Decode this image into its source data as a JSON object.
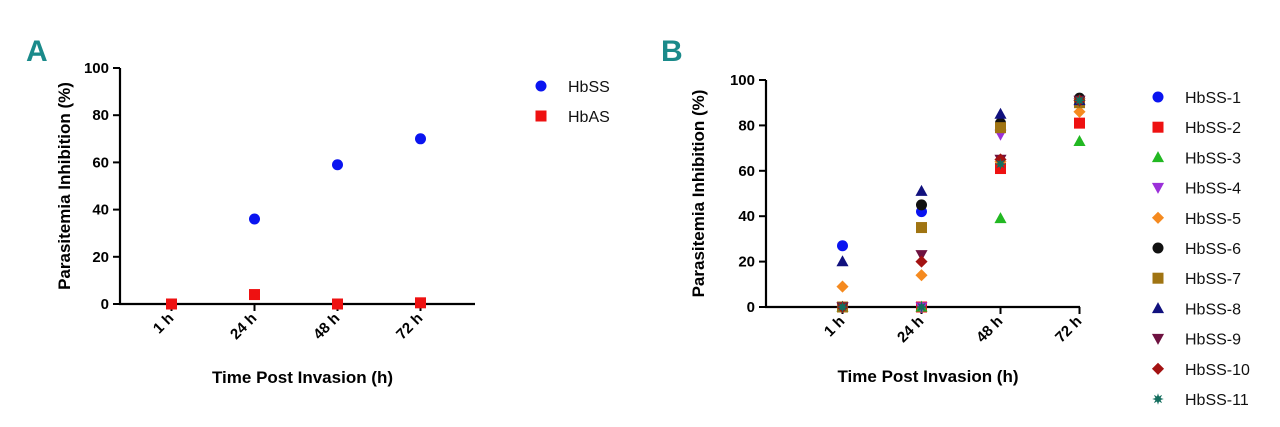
{
  "panel_letter_color": "#1a8a8a",
  "chart_data": [
    {
      "panel": "A",
      "type": "scatter",
      "xlabel": "Time Post Invasion (h)",
      "ylabel": "Parasitemia Inhibition (%)",
      "categories": [
        "1 h",
        "24 h",
        "48 h",
        "72 h"
      ],
      "yticks": [
        "0",
        "20",
        "40",
        "60",
        "80",
        "100"
      ],
      "ylim": [
        0,
        100
      ],
      "grid": false,
      "legend_position": "right",
      "series": [
        {
          "name": "HbSS",
          "color": "#0a14f0",
          "marker": "circle",
          "values": [
            null,
            36,
            59,
            70
          ]
        },
        {
          "name": "HbAS",
          "color": "#ee1111",
          "marker": "square",
          "values": [
            0,
            4,
            0,
            0.5
          ]
        }
      ]
    },
    {
      "panel": "B",
      "type": "scatter",
      "xlabel": "Time Post Invasion (h)",
      "ylabel": "Parasitemia Inhibition (%)",
      "categories": [
        "1 h",
        "24 h",
        "48 h",
        "72 h"
      ],
      "yticks": [
        "0",
        "20",
        "40",
        "60",
        "80",
        "100"
      ],
      "ylim": [
        0,
        100
      ],
      "grid": false,
      "legend_position": "right",
      "series": [
        {
          "name": "HbSS-1",
          "color": "#0a14f0",
          "marker": "circle",
          "values": [
            27,
            42,
            80,
            91
          ]
        },
        {
          "name": "HbSS-2",
          "color": "#ee1111",
          "marker": "square",
          "values": [
            0,
            0,
            61,
            81
          ]
        },
        {
          "name": "HbSS-3",
          "color": "#22b822",
          "marker": "triangle-up",
          "values": [
            0,
            0,
            39,
            73
          ]
        },
        {
          "name": "HbSS-4",
          "color": "#9b30d9",
          "marker": "triangle-down",
          "values": [
            0,
            0,
            76,
            90
          ]
        },
        {
          "name": "HbSS-5",
          "color": "#f58a1f",
          "marker": "diamond",
          "values": [
            9,
            14,
            64,
            86
          ]
        },
        {
          "name": "HbSS-6",
          "color": "#111111",
          "marker": "circle",
          "values": [
            0,
            45,
            81,
            92
          ]
        },
        {
          "name": "HbSS-7",
          "color": "#a07412",
          "marker": "square",
          "values": [
            0,
            35,
            79,
            90
          ]
        },
        {
          "name": "HbSS-8",
          "color": "#11117e",
          "marker": "triangle-up",
          "values": [
            20,
            51,
            85,
            91
          ]
        },
        {
          "name": "HbSS-9",
          "color": "#6e1240",
          "marker": "triangle-down",
          "values": [
            0,
            23,
            65,
            91
          ]
        },
        {
          "name": "HbSS-10",
          "color": "#a31212",
          "marker": "diamond",
          "values": [
            0,
            20,
            65,
            91
          ]
        },
        {
          "name": "HbSS-11",
          "color": "#146e5e",
          "marker": "star",
          "values": [
            0,
            0,
            63,
            91
          ]
        }
      ]
    }
  ]
}
